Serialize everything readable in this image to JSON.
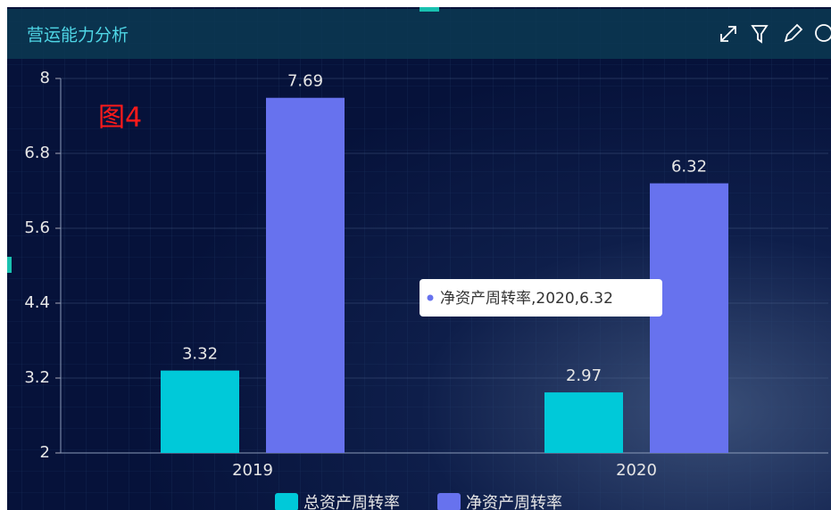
{
  "chart_data": {
    "type": "bar",
    "title": "营运能力分析",
    "annotation": "图4",
    "categories": [
      "2019",
      "2020"
    ],
    "series": [
      {
        "name": "总资产周转率",
        "color": "#00c9d9",
        "values": [
          3.32,
          2.97
        ]
      },
      {
        "name": "净资产周转率",
        "color": "#6772ee",
        "values": [
          7.69,
          6.32
        ]
      }
    ],
    "ylim": [
      2,
      8
    ],
    "yticks": [
      2,
      3.2,
      4.4,
      5.6,
      6.8,
      8
    ],
    "grid": true,
    "tooltip": "净资产周转率,2020,6.32"
  }
}
